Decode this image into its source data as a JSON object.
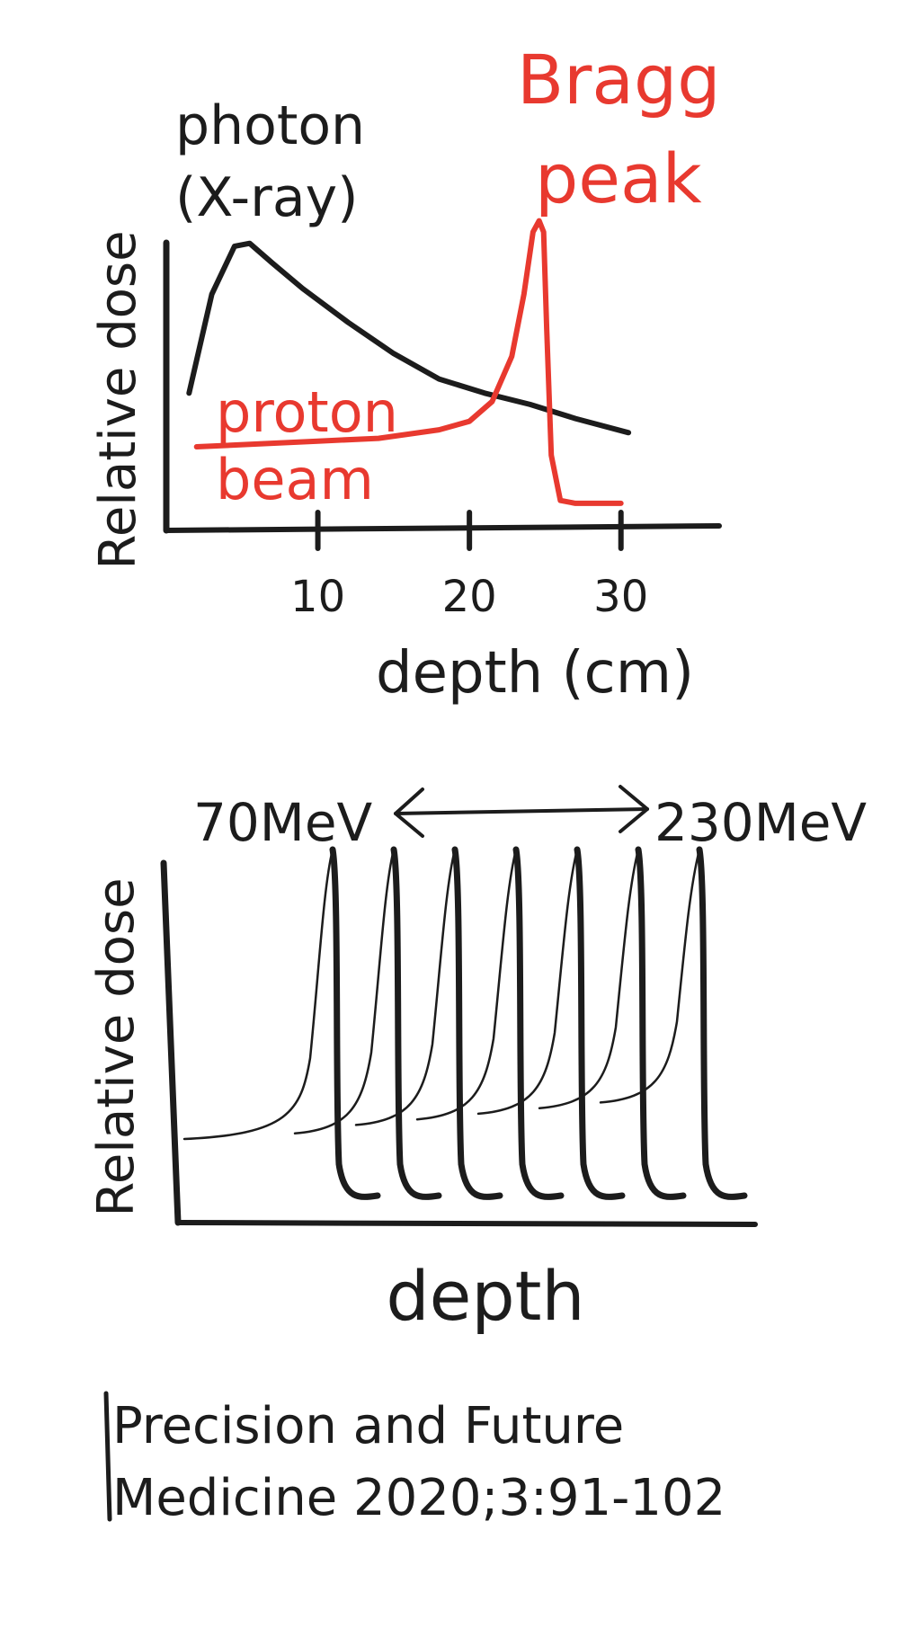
{
  "colors": {
    "ink": "#1c1c1c",
    "red": "#e8392f",
    "background": "#ffffff"
  },
  "chart_data": [
    {
      "type": "line",
      "ylabel": "Relative dose",
      "xlabel": "depth (cm)",
      "xticks": [
        10,
        20,
        30
      ],
      "xlim": [
        0,
        35
      ],
      "ylim": [
        0,
        1.05
      ],
      "grid": false,
      "annotations": [
        "photon (X-ray)",
        "Bragg peak",
        "proton beam"
      ],
      "series": [
        {
          "name": "photon (X-ray)",
          "color": "#1c1c1c",
          "x": [
            1.5,
            3,
            4.5,
            5.5,
            7,
            9,
            12,
            15,
            18,
            21,
            24,
            27,
            30.5
          ],
          "y": [
            0.47,
            0.82,
            0.99,
            1.0,
            0.93,
            0.84,
            0.72,
            0.61,
            0.52,
            0.47,
            0.43,
            0.38,
            0.33
          ]
        },
        {
          "name": "proton beam",
          "color": "#e8392f",
          "x": [
            2,
            6,
            10,
            14,
            18,
            20,
            21.5,
            22.8,
            23.6,
            24.2,
            24.6,
            24.9,
            25.1,
            25.4,
            26,
            27,
            30
          ],
          "y": [
            0.28,
            0.29,
            0.3,
            0.31,
            0.34,
            0.37,
            0.44,
            0.6,
            0.82,
            1.04,
            1.08,
            1.04,
            0.7,
            0.25,
            0.09,
            0.08,
            0.08
          ]
        }
      ]
    },
    {
      "type": "line",
      "ylabel": "Relative dose",
      "xlabel": "depth",
      "energy_range": {
        "low": "70MeV",
        "high": "230MeV"
      },
      "grid": false,
      "series_count": 7,
      "peak_positions": [
        1.0,
        2.0,
        3.0,
        4.0,
        5.0,
        6.0,
        7.0
      ],
      "plateau_levels": [
        0.25,
        0.27,
        0.3,
        0.32,
        0.34,
        0.36,
        0.38
      ]
    }
  ],
  "citation": {
    "line1": "Precision and Future",
    "line2": "Medicine 2020;3:91-102"
  }
}
